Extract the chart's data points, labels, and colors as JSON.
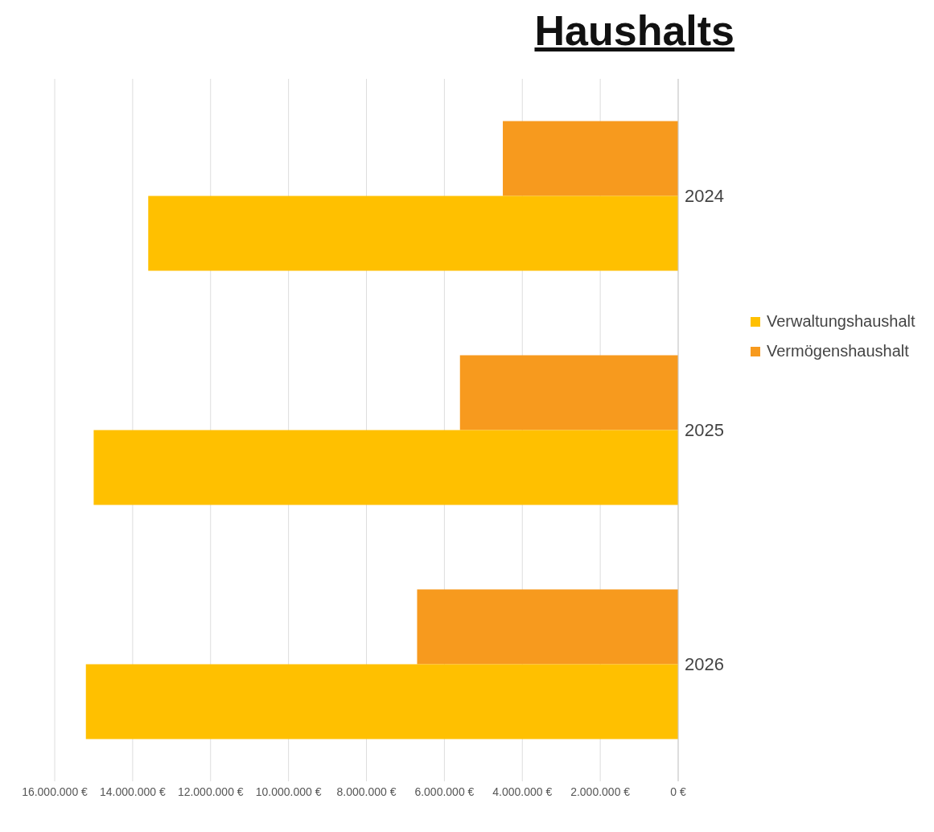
{
  "chart_data": {
    "type": "bar",
    "title": "Haushalts",
    "orientation": "horizontal",
    "categories": [
      "2024",
      "2025",
      "2026"
    ],
    "series": [
      {
        "name": "Verwaltungshaushalt",
        "color": "#ffc000",
        "values": [
          13600000,
          15000000,
          15200000
        ]
      },
      {
        "name": "Vermögenshaushalt",
        "color": "#f79a1e",
        "values": [
          4500000,
          5600000,
          6700000
        ]
      }
    ],
    "xlim": [
      16000000,
      0
    ],
    "xticks": [
      {
        "value": 0,
        "label": "0 €"
      },
      {
        "value": 2000000,
        "label": "2.000.000 €"
      },
      {
        "value": 4000000,
        "label": "4.000.000 €"
      },
      {
        "value": 6000000,
        "label": "6.000.000 €"
      },
      {
        "value": 8000000,
        "label": "8.000.000 €"
      },
      {
        "value": 10000000,
        "label": "10.000.000 €"
      },
      {
        "value": 12000000,
        "label": "12.000.000 €"
      },
      {
        "value": 14000000,
        "label": "14.000.000 €"
      },
      {
        "value": 16000000,
        "label": "16.000.000 €"
      }
    ],
    "grid": "x",
    "legend": "right"
  }
}
